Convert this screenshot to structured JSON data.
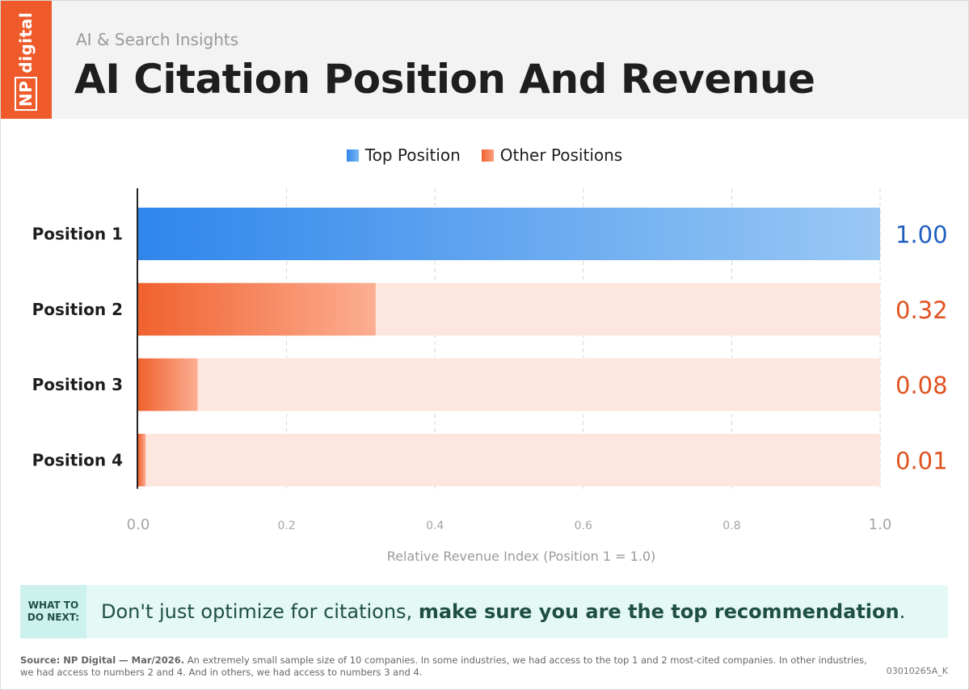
{
  "header": {
    "logo_text_np": "NP",
    "logo_text_rest": "digital",
    "subtitle": "AI & Search Insights",
    "title": "AI Citation Position And Revenue"
  },
  "legend": {
    "top": "Top Position",
    "other": "Other Positions"
  },
  "colors": {
    "brand_orange": "#ef5a2a",
    "top_blue": "#2f86ec",
    "top_value_text": "#1f5fbf",
    "other_orange": "#f0612e",
    "other_value_text": "#e0521f",
    "bar_track": "#fce6de"
  },
  "chart_data": {
    "type": "bar",
    "orientation": "horizontal",
    "categories": [
      "Position 1",
      "Position 2",
      "Position 3",
      "Position 4"
    ],
    "values": [
      1.0,
      0.32,
      0.08,
      0.01
    ],
    "value_labels": [
      "1.00",
      "0.32",
      "0.08",
      "0.01"
    ],
    "series_group": [
      "top",
      "other",
      "other",
      "other"
    ],
    "xlabel": "Relative Revenue Index (Position 1 = 1.0)",
    "xlim": [
      0,
      1.0
    ],
    "xticks": [
      0,
      0.2,
      0.4,
      0.6,
      0.8,
      1.0
    ],
    "xtick_labels": [
      "0.0",
      "0.2",
      "0.4",
      "0.6",
      "0.8",
      "1.0"
    ],
    "grid": "vertical dashed"
  },
  "callout": {
    "tag_line1": "WHAT TO",
    "tag_line2": "DO NEXT:",
    "text_plain": "Don't just optimize for citations, ",
    "text_bold": "make sure you are the top recommendation",
    "text_end": "."
  },
  "footer": {
    "source_bold": "Source: NP Digital — Mar/2026.",
    "source_text": " An extremely small sample size of 10 companies. In some industries, we had access to the top 1 and 2 most-cited companies. In other industries, we had access to numbers 2 and 4. And in others, we had access to numbers 3 and 4.",
    "code": "03010265A_K"
  }
}
